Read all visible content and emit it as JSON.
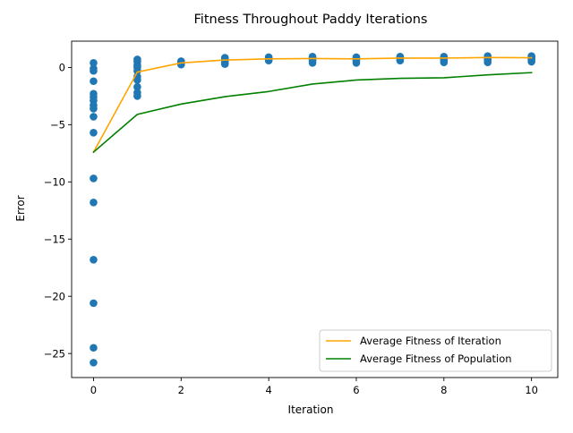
{
  "chart_data": {
    "type": "scatter",
    "title": "Fitness Throughout Paddy Iterations",
    "xlabel": "Iteration",
    "ylabel": "Error",
    "xlim": [
      -0.5,
      10.6
    ],
    "ylim": [
      -27.1,
      2.3
    ],
    "xticks": [
      0,
      2,
      4,
      6,
      8,
      10
    ],
    "xtick_labels": [
      "0",
      "2",
      "4",
      "6",
      "8",
      "10"
    ],
    "yticks": [
      0,
      -5,
      -10,
      -15,
      -20,
      -25
    ],
    "ytick_labels": [
      "0",
      "−5",
      "−10",
      "−15",
      "−20",
      "−25"
    ],
    "grid": false,
    "legend_position": "lower-right",
    "scatter": {
      "name": "",
      "color": "#1f77b4",
      "points": [
        {
          "x": 0,
          "y": 0.4
        },
        {
          "x": 0,
          "y": -0.1
        },
        {
          "x": 0,
          "y": -0.3
        },
        {
          "x": 0,
          "y": -1.2
        },
        {
          "x": 0,
          "y": -2.3
        },
        {
          "x": 0,
          "y": -2.6
        },
        {
          "x": 0,
          "y": -2.9
        },
        {
          "x": 0,
          "y": -3.3
        },
        {
          "x": 0,
          "y": -3.6
        },
        {
          "x": 0,
          "y": -4.3
        },
        {
          "x": 0,
          "y": -5.7
        },
        {
          "x": 0,
          "y": -9.7
        },
        {
          "x": 0,
          "y": -11.8
        },
        {
          "x": 0,
          "y": -16.8
        },
        {
          "x": 0,
          "y": -20.6
        },
        {
          "x": 0,
          "y": -24.5
        },
        {
          "x": 0,
          "y": -25.8
        },
        {
          "x": 1,
          "y": 0.7
        },
        {
          "x": 1,
          "y": 0.5
        },
        {
          "x": 1,
          "y": 0.2
        },
        {
          "x": 1,
          "y": 0.0
        },
        {
          "x": 1,
          "y": -0.3
        },
        {
          "x": 1,
          "y": -0.8
        },
        {
          "x": 1,
          "y": -1.1
        },
        {
          "x": 1,
          "y": -1.7
        },
        {
          "x": 1,
          "y": -2.2
        },
        {
          "x": 1,
          "y": -2.5
        },
        {
          "x": 2,
          "y": 0.55
        },
        {
          "x": 2,
          "y": 0.45
        },
        {
          "x": 2,
          "y": 0.35
        },
        {
          "x": 2,
          "y": 0.25
        },
        {
          "x": 3,
          "y": 0.85
        },
        {
          "x": 3,
          "y": 0.75
        },
        {
          "x": 3,
          "y": 0.6
        },
        {
          "x": 3,
          "y": 0.45
        },
        {
          "x": 3,
          "y": 0.3
        },
        {
          "x": 4,
          "y": 0.9
        },
        {
          "x": 4,
          "y": 0.8
        },
        {
          "x": 4,
          "y": 0.7
        },
        {
          "x": 4,
          "y": 0.6
        },
        {
          "x": 5,
          "y": 0.95
        },
        {
          "x": 5,
          "y": 0.85
        },
        {
          "x": 5,
          "y": 0.7
        },
        {
          "x": 5,
          "y": 0.55
        },
        {
          "x": 5,
          "y": 0.4
        },
        {
          "x": 6,
          "y": 0.9
        },
        {
          "x": 6,
          "y": 0.8
        },
        {
          "x": 6,
          "y": 0.7
        },
        {
          "x": 6,
          "y": 0.55
        },
        {
          "x": 6,
          "y": 0.4
        },
        {
          "x": 7,
          "y": 0.95
        },
        {
          "x": 7,
          "y": 0.85
        },
        {
          "x": 7,
          "y": 0.75
        },
        {
          "x": 7,
          "y": 0.6
        },
        {
          "x": 8,
          "y": 0.95
        },
        {
          "x": 8,
          "y": 0.85
        },
        {
          "x": 8,
          "y": 0.65
        },
        {
          "x": 8,
          "y": 0.45
        },
        {
          "x": 9,
          "y": 1.0
        },
        {
          "x": 9,
          "y": 0.9
        },
        {
          "x": 9,
          "y": 0.8
        },
        {
          "x": 9,
          "y": 0.65
        },
        {
          "x": 9,
          "y": 0.45
        },
        {
          "x": 10,
          "y": 1.0
        },
        {
          "x": 10,
          "y": 0.9
        },
        {
          "x": 10,
          "y": 0.8
        },
        {
          "x": 10,
          "y": 0.65
        },
        {
          "x": 10,
          "y": 0.5
        }
      ]
    },
    "series": [
      {
        "name": "Average Fitness of Iteration",
        "color": "#ffa500",
        "x": [
          0,
          1,
          2,
          3,
          4,
          5,
          6,
          7,
          8,
          9,
          10
        ],
        "values": [
          -7.4,
          -0.4,
          0.4,
          0.65,
          0.75,
          0.78,
          0.75,
          0.82,
          0.82,
          0.87,
          0.85
        ]
      },
      {
        "name": "Average Fitness of Population",
        "color": "#008000",
        "x": [
          0,
          1,
          2,
          3,
          4,
          5,
          6,
          7,
          8,
          9,
          10
        ],
        "values": [
          -7.4,
          -4.1,
          -3.2,
          -2.55,
          -2.1,
          -1.45,
          -1.1,
          -0.95,
          -0.9,
          -0.65,
          -0.45
        ]
      }
    ]
  }
}
